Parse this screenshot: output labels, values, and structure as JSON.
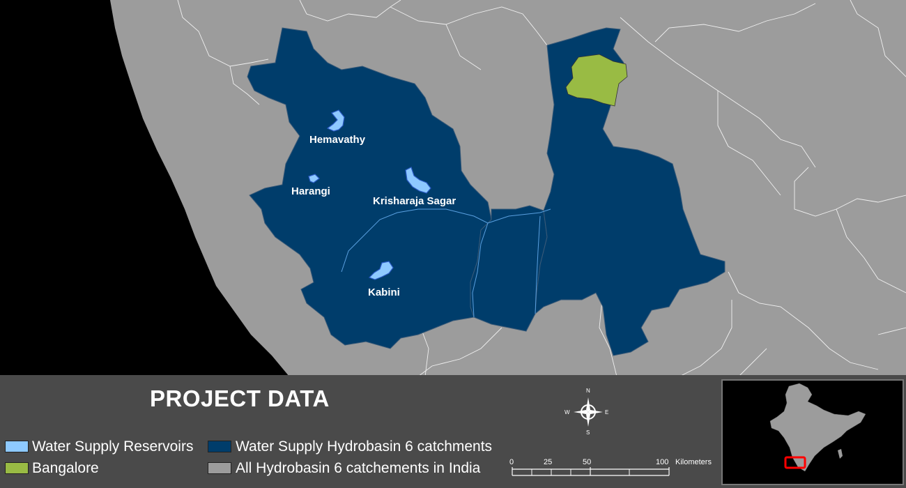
{
  "colors": {
    "background": "#000000",
    "land": "#9c9c9c",
    "catchment": "#003d6b",
    "bangalore": "#99bb44",
    "reservoir": "#8ec9ff",
    "panel": "#4a4a4a",
    "inset_highlight": "#ff0000"
  },
  "map": {
    "labels": {
      "hemavathy": "Hemavathy",
      "harangi": "Harangi",
      "krisharaja_sagar": "Krisharaja Sagar",
      "kabini": "Kabini"
    }
  },
  "legend": {
    "title": "PROJECT DATA",
    "items": {
      "reservoirs": "Water Supply Reservoirs",
      "catchments": "Water Supply Hydrobasin 6 catchments",
      "bangalore": "Bangalore",
      "all_catchments": "All Hydrobasin 6 catchements in India"
    }
  },
  "scale_bar": {
    "ticks": [
      "0",
      "25",
      "50",
      "100"
    ],
    "unit": "Kilometers"
  },
  "compass": {
    "n": "N",
    "s": "S",
    "e": "E",
    "w": "W"
  }
}
